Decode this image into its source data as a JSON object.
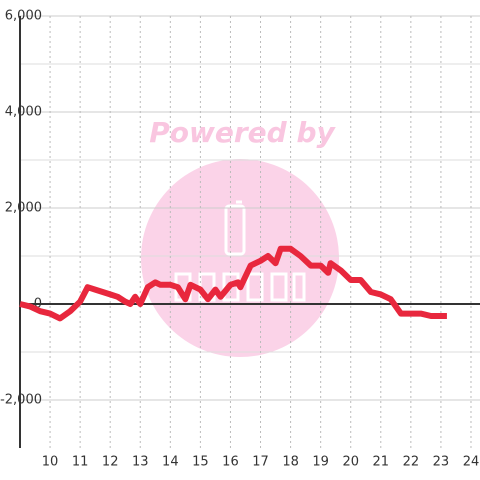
{
  "chart_data": {
    "type": "line",
    "watermark": "Powered by",
    "x": [
      9.0,
      9.33,
      9.67,
      10.0,
      10.33,
      10.67,
      11.0,
      11.25,
      11.5,
      12.0,
      12.25,
      12.5,
      12.67,
      12.83,
      13.0,
      13.25,
      13.5,
      13.67,
      14.0,
      14.25,
      14.5,
      14.67,
      15.0,
      15.25,
      15.5,
      15.67,
      16.0,
      16.25,
      16.33,
      16.67,
      17.0,
      17.25,
      17.5,
      17.67,
      18.0,
      18.33,
      18.67,
      19.0,
      19.25,
      19.33,
      19.67,
      20.0,
      20.33,
      20.67,
      21.0,
      21.33,
      21.67,
      22.0,
      22.33,
      22.67,
      23.0,
      23.2
    ],
    "series": [
      {
        "color": "#e8273d",
        "values": [
          0,
          -50,
          -150,
          -200,
          -300,
          -150,
          50,
          350,
          300,
          200,
          150,
          50,
          0,
          150,
          0,
          350,
          450,
          400,
          400,
          350,
          100,
          400,
          300,
          100,
          300,
          150,
          400,
          450,
          350,
          800,
          900,
          1000,
          850,
          1150,
          1150,
          1000,
          800,
          800,
          650,
          850,
          700,
          500,
          500,
          250,
          200,
          100,
          -200,
          -200,
          -200,
          -250,
          -250,
          -250
        ]
      }
    ],
    "xlim": [
      9,
      24.3
    ],
    "xticks": [
      10,
      11,
      12,
      13,
      14,
      15,
      16,
      17,
      18,
      19,
      20,
      21,
      22,
      23,
      24
    ],
    "ylim": [
      -3000,
      6000
    ],
    "yticks": [
      {
        "value": -2000,
        "label": "-2,000"
      },
      0,
      {
        "value": 2000,
        "label": "2,000"
      },
      {
        "value": 4000,
        "label": "4,000"
      },
      {
        "value": 6000,
        "label": "6,000"
      }
    ],
    "grid": true
  }
}
